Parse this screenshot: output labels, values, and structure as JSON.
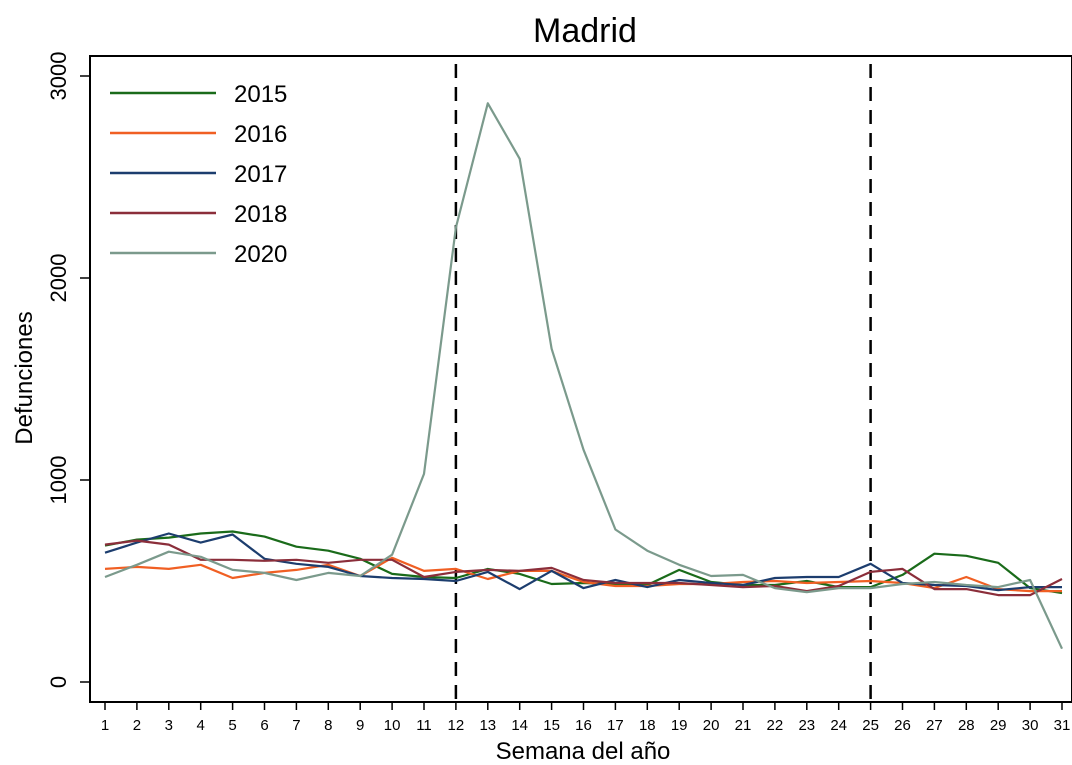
{
  "chart_data": {
    "type": "line",
    "title": "Madrid",
    "xlabel": "Semana del año",
    "ylabel": "Defunciones",
    "xlim": [
      1,
      31
    ],
    "ylim": [
      0,
      3000
    ],
    "x_ticks": [
      1,
      2,
      3,
      4,
      5,
      6,
      7,
      8,
      9,
      10,
      11,
      12,
      13,
      14,
      15,
      16,
      17,
      18,
      19,
      20,
      21,
      22,
      23,
      24,
      25,
      26,
      27,
      28,
      29,
      30,
      31
    ],
    "y_ticks": [
      0,
      1000,
      2000,
      3000
    ],
    "grid": false,
    "legend_position": "top-left",
    "reference_lines_x": [
      12,
      25
    ],
    "x": [
      1,
      2,
      3,
      4,
      5,
      6,
      7,
      8,
      9,
      10,
      11,
      12,
      13,
      14,
      15,
      16,
      17,
      18,
      19,
      20,
      21,
      22,
      23,
      24,
      25,
      26,
      27,
      28,
      29,
      30,
      31
    ],
    "series": [
      {
        "name": "2015",
        "color": "#1a6b1a",
        "values": [
          675,
          705,
          715,
          735,
          745,
          720,
          670,
          650,
          610,
          535,
          520,
          515,
          560,
          535,
          485,
          490,
          485,
          480,
          555,
          495,
          480,
          480,
          500,
          470,
          470,
          530,
          635,
          625,
          590,
          465,
          440
        ]
      },
      {
        "name": "2016",
        "color": "#f05f23",
        "values": [
          560,
          570,
          560,
          580,
          515,
          540,
          555,
          580,
          525,
          615,
          550,
          560,
          510,
          550,
          550,
          495,
          475,
          475,
          485,
          485,
          495,
          500,
          490,
          495,
          500,
          490,
          465,
          520,
          460,
          450,
          450
        ]
      },
      {
        "name": "2017",
        "color": "#1c3d6e",
        "values": [
          640,
          690,
          735,
          690,
          730,
          610,
          585,
          570,
          525,
          515,
          510,
          500,
          545,
          460,
          550,
          465,
          505,
          470,
          505,
          490,
          480,
          515,
          520,
          520,
          585,
          490,
          480,
          475,
          455,
          470,
          470
        ]
      },
      {
        "name": "2018",
        "color": "#8b2e3a",
        "values": [
          680,
          700,
          680,
          605,
          605,
          600,
          605,
          590,
          605,
          605,
          520,
          545,
          555,
          550,
          565,
          505,
          490,
          490,
          490,
          480,
          470,
          475,
          450,
          475,
          545,
          560,
          460,
          460,
          430,
          430,
          510
        ]
      },
      {
        "name": "2020",
        "color": "#7b9a8c",
        "values": [
          520,
          580,
          645,
          620,
          555,
          540,
          505,
          540,
          525,
          630,
          1030,
          2250,
          2865,
          2590,
          1650,
          1150,
          755,
          650,
          580,
          525,
          530,
          465,
          445,
          465,
          465,
          485,
          495,
          480,
          470,
          505,
          165
        ]
      }
    ]
  }
}
